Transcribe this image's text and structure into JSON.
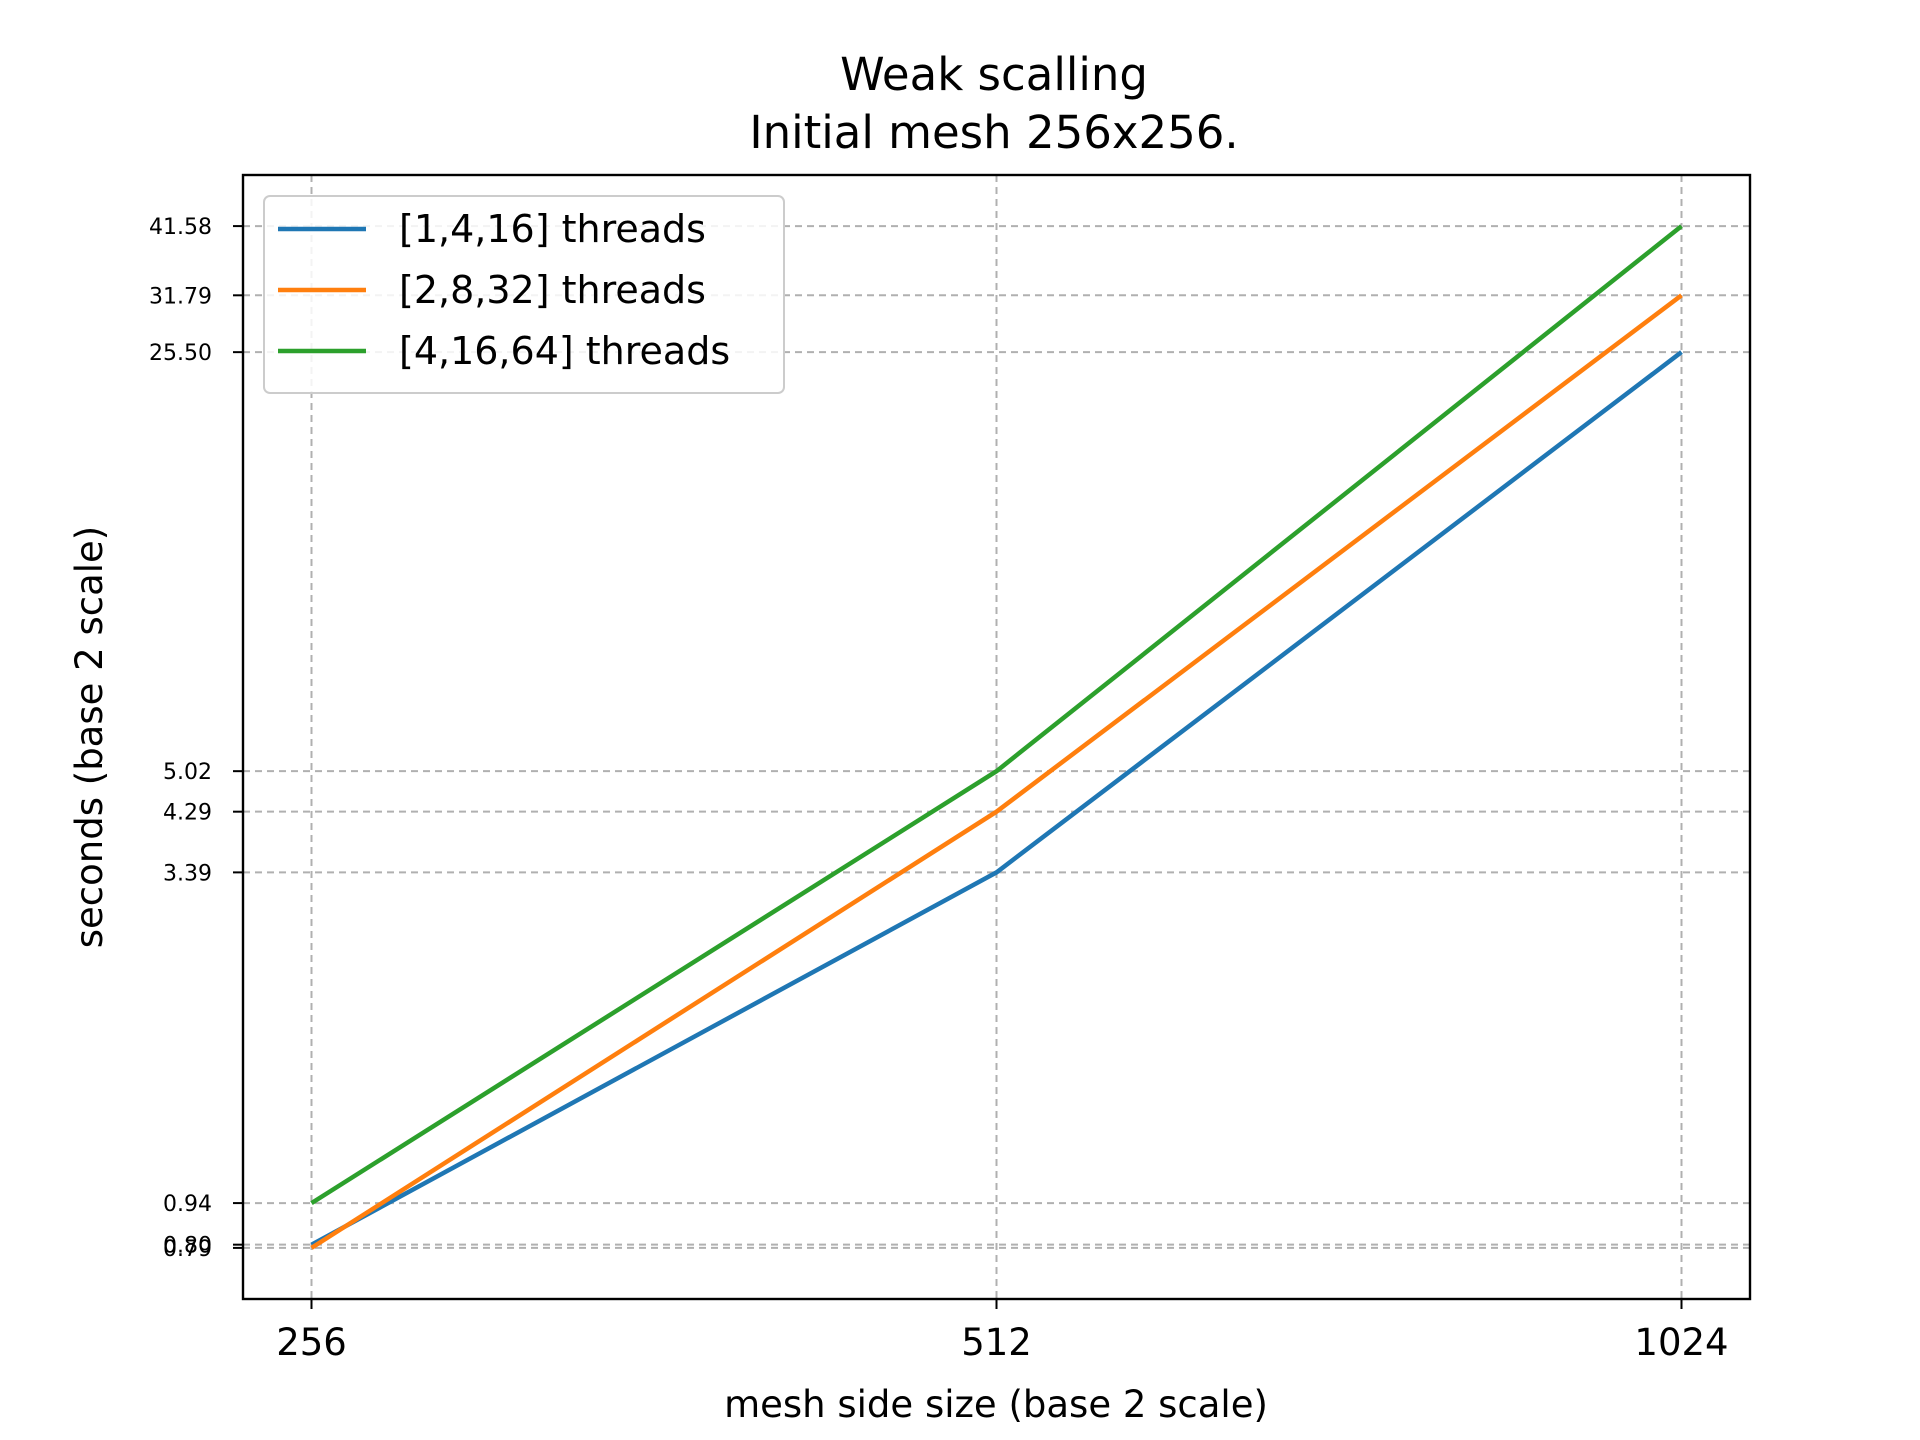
{
  "chart_data": {
    "type": "line",
    "title": "Weak scalling",
    "subtitle": "Initial mesh 256x256.",
    "xlabel": "mesh side size (base 2 scale)",
    "ylabel": "seconds (base 2 scale)",
    "x_scale": "log2",
    "y_scale": "log2",
    "x": [
      256,
      512,
      1024
    ],
    "x_tick_labels": [
      "256",
      "512",
      "1024"
    ],
    "y_tick_values": [
      0.79,
      0.8,
      0.94,
      3.39,
      4.29,
      5.02,
      25.5,
      31.79,
      41.58
    ],
    "y_tick_labels": [
      "0.79",
      "0.80",
      "0.94",
      "3.39",
      "4.29",
      "5.02",
      "25.50",
      "31.79",
      "41.58"
    ],
    "series": [
      {
        "name": "[1,4,16] threads",
        "values": [
          0.8,
          3.39,
          25.5
        ],
        "color": "#1f77b4"
      },
      {
        "name": "[2,8,32] threads",
        "values": [
          0.79,
          4.29,
          31.79
        ],
        "color": "#ff7f0e"
      },
      {
        "name": "[4,16,64] threads",
        "values": [
          0.94,
          5.02,
          41.58
        ],
        "color": "#2ca02c"
      }
    ],
    "grid": true,
    "legend_position": "top-left"
  }
}
